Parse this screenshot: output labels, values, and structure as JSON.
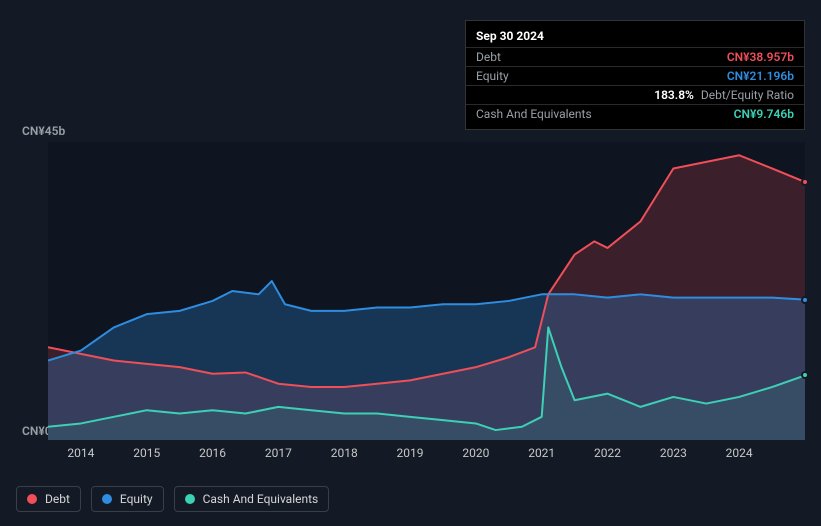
{
  "background_color": "#131a25",
  "plot_background": "#0e1420",
  "tooltip": {
    "date": "Sep 30 2024",
    "rows": [
      {
        "label": "Debt",
        "value": "CN¥38.957b",
        "color": "#ef4f59"
      },
      {
        "label": "Equity",
        "value": "CN¥21.196b",
        "color": "#2f8de0"
      },
      {
        "label": "",
        "value_prefix": "183.8%",
        "value_suffix": "Debt/Equity Ratio",
        "color": "#ffffff"
      },
      {
        "label": "Cash And Equivalents",
        "value": "CN¥9.746b",
        "color": "#3dd0b5"
      }
    ]
  },
  "chart": {
    "type": "area",
    "y_axis": {
      "top_label": "CN¥45b",
      "bottom_label": "CN¥0",
      "min": 0,
      "max": 45
    },
    "x_axis": {
      "min": 2013.5,
      "max": 2025.0,
      "ticks": [
        2014,
        2015,
        2016,
        2017,
        2018,
        2019,
        2020,
        2021,
        2022,
        2023,
        2024
      ],
      "labels": [
        "2014",
        "2015",
        "2016",
        "2017",
        "2018",
        "2019",
        "2020",
        "2021",
        "2022",
        "2023",
        "2024"
      ]
    },
    "series": [
      {
        "name": "Debt",
        "color": "#ef4f59",
        "fill_opacity": 0.2,
        "line_width": 2,
        "x": [
          2013.5,
          2014.0,
          2014.5,
          2015.0,
          2015.5,
          2016.0,
          2016.5,
          2017.0,
          2017.5,
          2018.0,
          2018.5,
          2019.0,
          2019.5,
          2020.0,
          2020.5,
          2020.9,
          2021.1,
          2021.5,
          2021.8,
          2022.0,
          2022.5,
          2023.0,
          2023.5,
          2024.0,
          2024.5,
          2025.0
        ],
        "y": [
          14.0,
          13.0,
          12.0,
          11.5,
          11.0,
          10.0,
          10.2,
          8.5,
          8.0,
          8.0,
          8.5,
          9.0,
          10.0,
          11.0,
          12.5,
          14.0,
          22.0,
          28.0,
          30.0,
          29.0,
          33.0,
          41.0,
          42.0,
          43.0,
          41.0,
          38.957
        ]
      },
      {
        "name": "Equity",
        "color": "#2f8de0",
        "fill_opacity": 0.28,
        "line_width": 2,
        "x": [
          2013.5,
          2014.0,
          2014.5,
          2015.0,
          2015.5,
          2016.0,
          2016.3,
          2016.7,
          2016.9,
          2017.1,
          2017.5,
          2018.0,
          2018.5,
          2019.0,
          2019.5,
          2020.0,
          2020.5,
          2021.0,
          2021.5,
          2022.0,
          2022.5,
          2023.0,
          2023.5,
          2024.0,
          2024.5,
          2025.0
        ],
        "y": [
          12.0,
          13.5,
          17.0,
          19.0,
          19.5,
          21.0,
          22.5,
          22.0,
          24.0,
          20.5,
          19.5,
          19.5,
          20.0,
          20.0,
          20.5,
          20.5,
          21.0,
          22.0,
          22.0,
          21.5,
          22.0,
          21.5,
          21.5,
          21.5,
          21.5,
          21.196
        ]
      },
      {
        "name": "Cash And Equivalents",
        "color": "#3dd0b5",
        "fill_opacity": 0.1,
        "line_width": 2,
        "x": [
          2013.5,
          2014.0,
          2014.5,
          2015.0,
          2015.5,
          2016.0,
          2016.5,
          2017.0,
          2017.5,
          2018.0,
          2018.5,
          2019.0,
          2019.5,
          2020.0,
          2020.3,
          2020.7,
          2021.0,
          2021.1,
          2021.3,
          2021.5,
          2022.0,
          2022.5,
          2023.0,
          2023.5,
          2024.0,
          2024.5,
          2025.0
        ],
        "y": [
          2.0,
          2.5,
          3.5,
          4.5,
          4.0,
          4.5,
          4.0,
          5.0,
          4.5,
          4.0,
          4.0,
          3.5,
          3.0,
          2.5,
          1.5,
          2.0,
          3.5,
          17.0,
          11.0,
          6.0,
          7.0,
          5.0,
          6.5,
          5.5,
          6.5,
          8.0,
          9.746
        ]
      }
    ]
  },
  "legend": [
    {
      "label": "Debt",
      "color": "#ef4f59"
    },
    {
      "label": "Equity",
      "color": "#2f8de0"
    },
    {
      "label": "Cash And Equivalents",
      "color": "#3dd0b5"
    }
  ]
}
